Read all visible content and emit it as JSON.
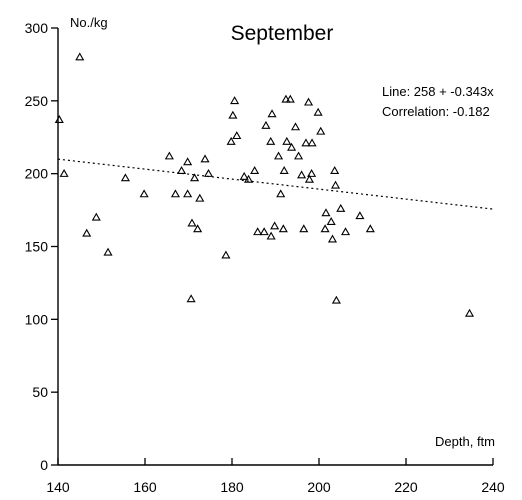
{
  "chart_data": {
    "type": "scatter",
    "title": "September",
    "xlabel": "Depth, ftm",
    "ylabel": "No./kg",
    "xlim": [
      140,
      240
    ],
    "ylim": [
      0,
      300
    ],
    "xticks": [
      140,
      160,
      180,
      200,
      220,
      240
    ],
    "yticks": [
      0,
      50,
      100,
      150,
      200,
      250,
      300
    ],
    "grid": false,
    "annotations": [
      "Line: 258 + -0.343x",
      "Correlation: -0.182"
    ],
    "trendline": {
      "intercept": 258,
      "slope": -0.343,
      "style": "dotted"
    },
    "points": [
      {
        "x": 140.3,
        "y": 237
      },
      {
        "x": 141.4,
        "y": 200
      },
      {
        "x": 145,
        "y": 280
      },
      {
        "x": 146.6,
        "y": 159
      },
      {
        "x": 148.8,
        "y": 170
      },
      {
        "x": 151.5,
        "y": 146
      },
      {
        "x": 155.5,
        "y": 197
      },
      {
        "x": 159.8,
        "y": 186
      },
      {
        "x": 165.6,
        "y": 212
      },
      {
        "x": 167,
        "y": 186
      },
      {
        "x": 168.4,
        "y": 202
      },
      {
        "x": 169.8,
        "y": 186
      },
      {
        "x": 169.8,
        "y": 208
      },
      {
        "x": 170.6,
        "y": 114
      },
      {
        "x": 170.8,
        "y": 166
      },
      {
        "x": 171.4,
        "y": 197
      },
      {
        "x": 172.1,
        "y": 162
      },
      {
        "x": 172.6,
        "y": 183
      },
      {
        "x": 173.8,
        "y": 210
      },
      {
        "x": 174.6,
        "y": 200
      },
      {
        "x": 178.6,
        "y": 144
      },
      {
        "x": 179.8,
        "y": 222
      },
      {
        "x": 180.2,
        "y": 240
      },
      {
        "x": 180.6,
        "y": 250
      },
      {
        "x": 181.1,
        "y": 226
      },
      {
        "x": 182.8,
        "y": 198
      },
      {
        "x": 183.8,
        "y": 196
      },
      {
        "x": 185.2,
        "y": 202
      },
      {
        "x": 185.9,
        "y": 160
      },
      {
        "x": 187.4,
        "y": 160
      },
      {
        "x": 187.8,
        "y": 233
      },
      {
        "x": 188.9,
        "y": 222
      },
      {
        "x": 189,
        "y": 157
      },
      {
        "x": 189.2,
        "y": 241
      },
      {
        "x": 189.8,
        "y": 164
      },
      {
        "x": 190.7,
        "y": 212
      },
      {
        "x": 191.2,
        "y": 186
      },
      {
        "x": 191.8,
        "y": 162
      },
      {
        "x": 192,
        "y": 202
      },
      {
        "x": 192.4,
        "y": 251
      },
      {
        "x": 192.6,
        "y": 222
      },
      {
        "x": 193.4,
        "y": 251
      },
      {
        "x": 193.7,
        "y": 218
      },
      {
        "x": 194.6,
        "y": 232
      },
      {
        "x": 195.3,
        "y": 212
      },
      {
        "x": 196,
        "y": 199
      },
      {
        "x": 196.5,
        "y": 162
      },
      {
        "x": 197,
        "y": 221
      },
      {
        "x": 197.6,
        "y": 249
      },
      {
        "x": 197.8,
        "y": 196
      },
      {
        "x": 198.3,
        "y": 200
      },
      {
        "x": 198.4,
        "y": 221
      },
      {
        "x": 199.8,
        "y": 242
      },
      {
        "x": 200.4,
        "y": 229
      },
      {
        "x": 201.4,
        "y": 162
      },
      {
        "x": 201.6,
        "y": 173
      },
      {
        "x": 202.8,
        "y": 167
      },
      {
        "x": 203.1,
        "y": 155
      },
      {
        "x": 203.6,
        "y": 202
      },
      {
        "x": 203.8,
        "y": 192
      },
      {
        "x": 204,
        "y": 113
      },
      {
        "x": 205,
        "y": 176
      },
      {
        "x": 206.1,
        "y": 160
      },
      {
        "x": 209.4,
        "y": 171
      },
      {
        "x": 211.8,
        "y": 162
      },
      {
        "x": 234.6,
        "y": 104
      }
    ]
  }
}
